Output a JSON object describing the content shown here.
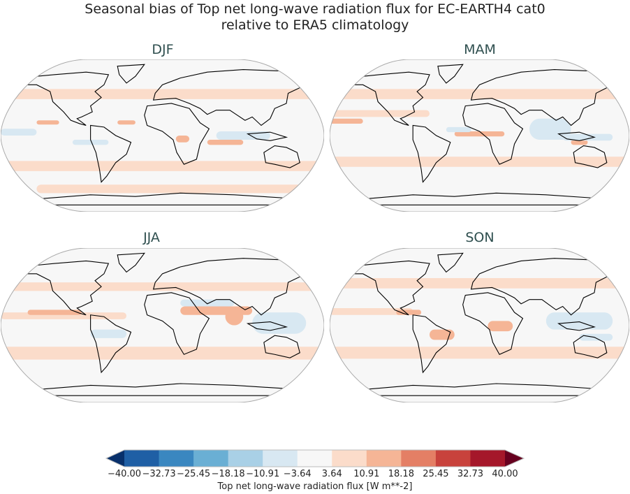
{
  "figure": {
    "title_line1": "Seasonal bias of Top net long-wave radiation flux for EC-EARTH4 cat0",
    "title_line2": "relative to ERA5 climatology"
  },
  "panels": [
    {
      "title": "DJF"
    },
    {
      "title": "MAM"
    },
    {
      "title": "JJA"
    },
    {
      "title": "SON"
    }
  ],
  "colorbar": {
    "label": "Top net long-wave radiation flux [W m**-2]",
    "ticks": [
      "−40.00",
      "−32.73",
      "−25.45",
      "−18.18",
      "−10.91",
      "−3.64",
      "3.64",
      "10.91",
      "18.18",
      "25.45",
      "32.73",
      "40.00"
    ],
    "range": [
      -40,
      40
    ],
    "extend": "both",
    "colors": [
      "#1f5fa5",
      "#3a87c0",
      "#6aafd4",
      "#a9d0e6",
      "#d8e8f2",
      "#f7f7f7",
      "#fbdcca",
      "#f5b596",
      "#e47f65",
      "#c8423c",
      "#a5172a"
    ],
    "under_color": "#08306b",
    "over_color": "#67001f"
  }
}
